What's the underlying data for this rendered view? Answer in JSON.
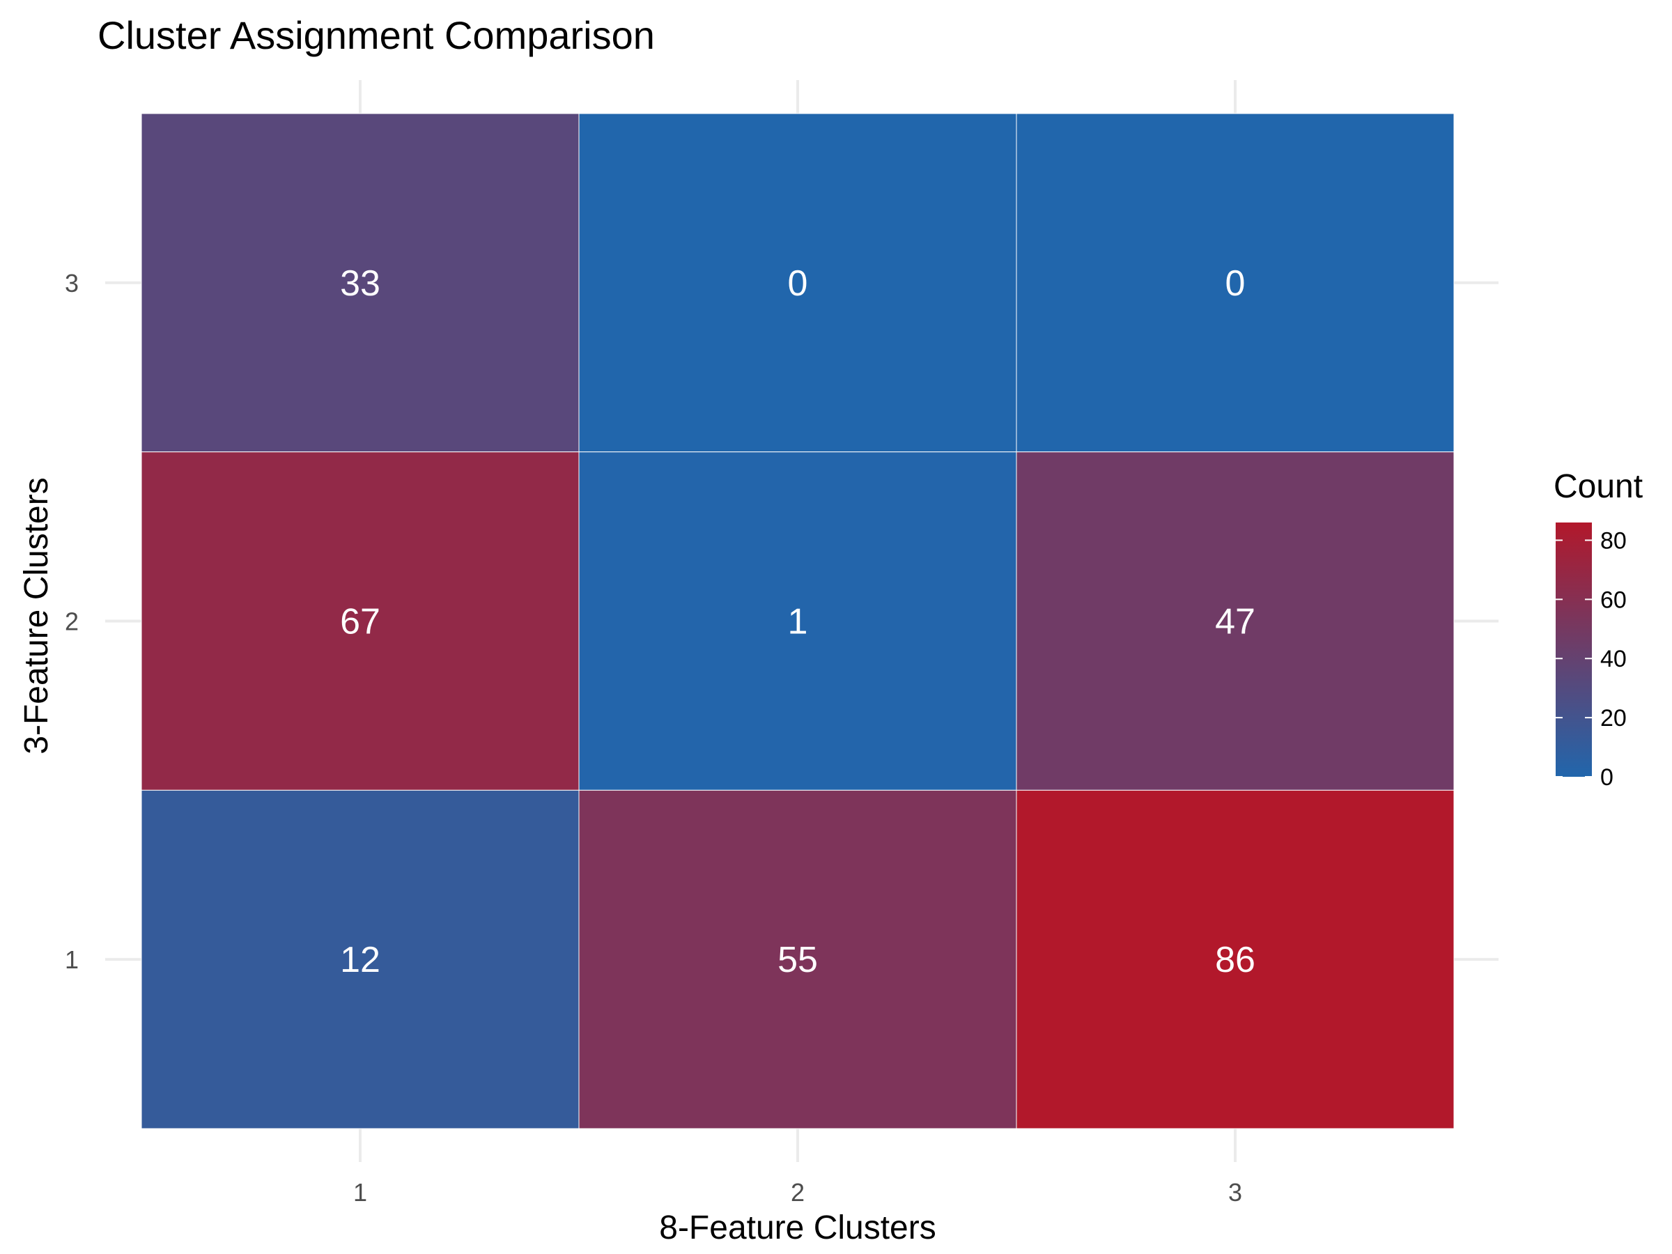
{
  "chart_data": {
    "type": "heatmap",
    "title": "Cluster Assignment Comparison",
    "xlabel": "8-Feature Clusters",
    "ylabel": "3-Feature Clusters",
    "x_categories": [
      "1",
      "2",
      "3"
    ],
    "y_categories": [
      "1",
      "2",
      "3"
    ],
    "cells": [
      {
        "x": "1",
        "y": "3",
        "value": 33
      },
      {
        "x": "2",
        "y": "3",
        "value": 0
      },
      {
        "x": "3",
        "y": "3",
        "value": 0
      },
      {
        "x": "1",
        "y": "2",
        "value": 67
      },
      {
        "x": "2",
        "y": "2",
        "value": 1
      },
      {
        "x": "3",
        "y": "2",
        "value": 47
      },
      {
        "x": "1",
        "y": "1",
        "value": 12
      },
      {
        "x": "2",
        "y": "1",
        "value": 55
      },
      {
        "x": "3",
        "y": "1",
        "value": 86
      }
    ],
    "color_scale": {
      "low": "#2166ac",
      "high": "#b2182b",
      "min": 0,
      "max": 86
    },
    "legend": {
      "title": "Count",
      "ticks": [
        0,
        20,
        40,
        60,
        80
      ],
      "position": "right"
    },
    "grid": true
  }
}
